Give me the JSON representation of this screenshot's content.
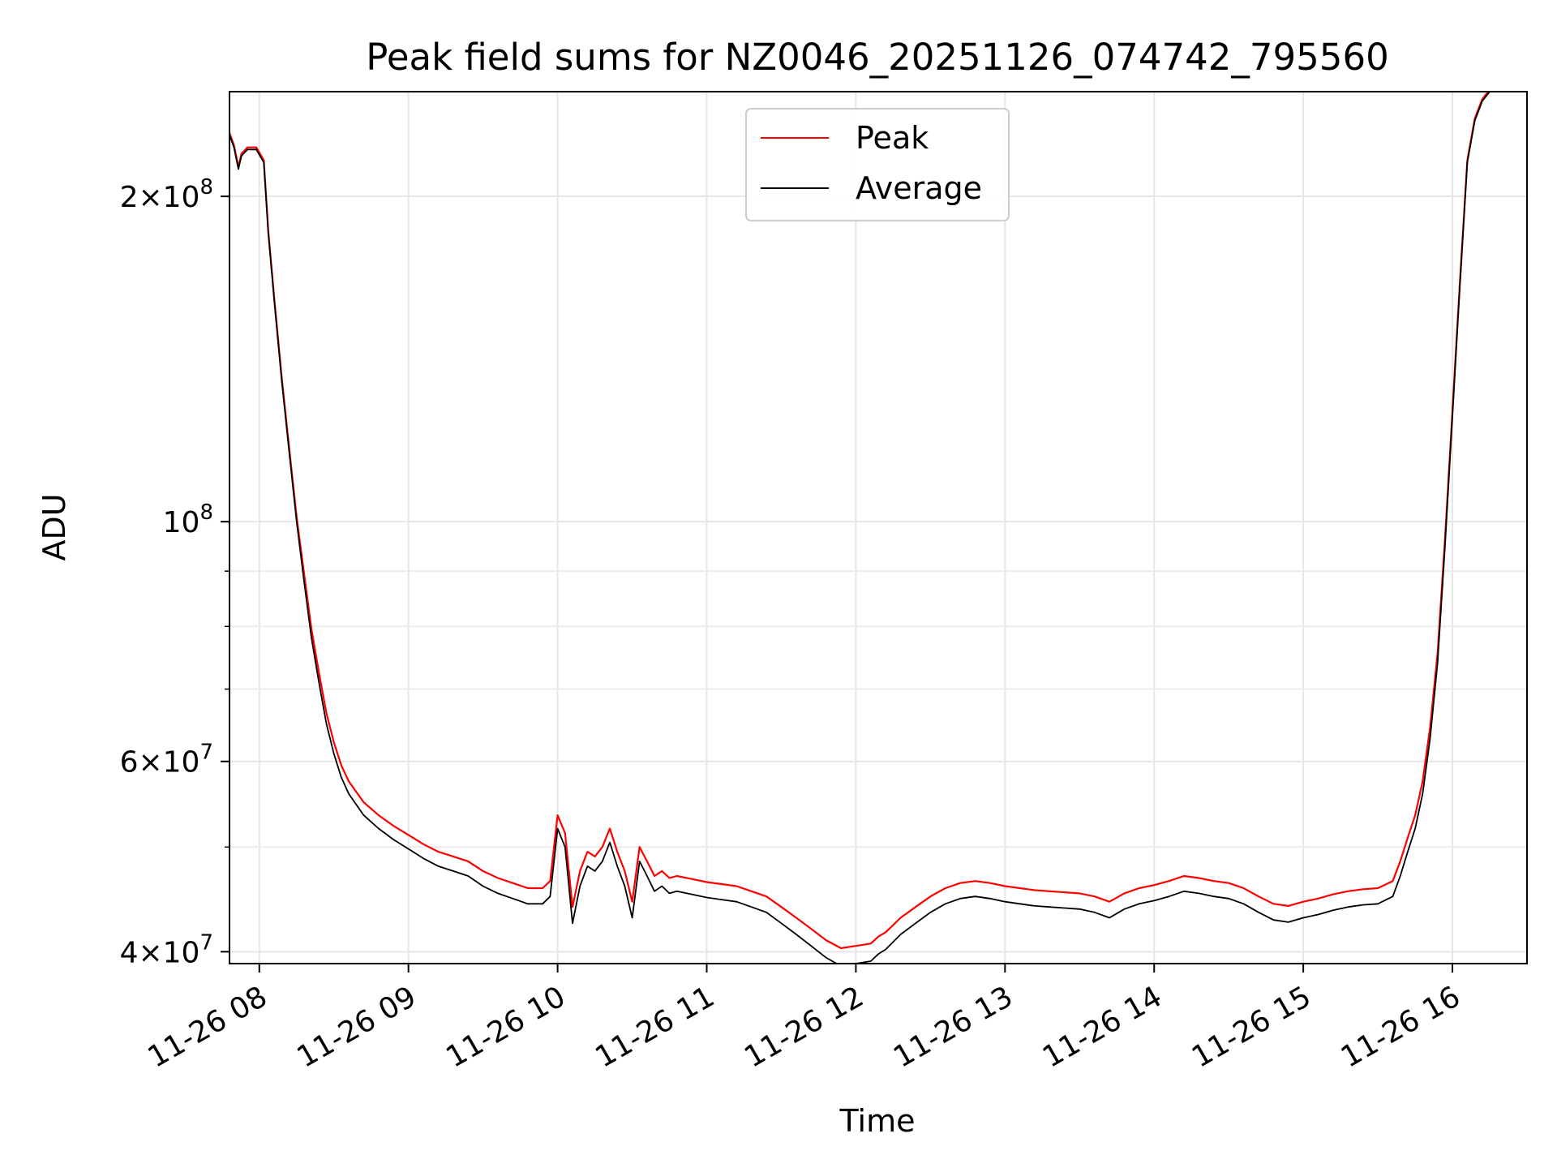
{
  "chart_data": {
    "type": "line",
    "title": "Peak field sums for NZ0046_20251126_074742_795560",
    "xlabel": "Time",
    "ylabel": "ADU",
    "yscale": "log",
    "ylim": [
      39000000,
      250000000
    ],
    "xlim_hours": [
      7.8,
      16.5
    ],
    "x_ticks": [
      {
        "value": 8,
        "label": "11-26 08"
      },
      {
        "value": 9,
        "label": "11-26 09"
      },
      {
        "value": 10,
        "label": "11-26 10"
      },
      {
        "value": 11,
        "label": "11-26 11"
      },
      {
        "value": 12,
        "label": "11-26 12"
      },
      {
        "value": 13,
        "label": "11-26 13"
      },
      {
        "value": 14,
        "label": "11-26 14"
      },
      {
        "value": 15,
        "label": "11-26 15"
      },
      {
        "value": 16,
        "label": "11-26 16"
      }
    ],
    "y_ticks": [
      {
        "value": 40000000,
        "mantissa": "4",
        "exp": "7"
      },
      {
        "value": 60000000,
        "mantissa": "6",
        "exp": "7"
      },
      {
        "value": 100000000,
        "mantissa": "",
        "exp": "8"
      },
      {
        "value": 200000000,
        "mantissa": "2",
        "exp": "8"
      }
    ],
    "y_minor_ticks": [
      50000000,
      70000000,
      80000000,
      90000000
    ],
    "grid": true,
    "legend": {
      "position": "upper center",
      "entries": [
        {
          "name": "Peak",
          "color": "#ff0000"
        },
        {
          "name": "Average",
          "color": "#000000"
        }
      ]
    },
    "series": [
      {
        "name": "Average",
        "color": "#000000",
        "x": [
          7.8,
          7.83,
          7.86,
          7.88,
          7.92,
          7.98,
          8.03,
          8.06,
          8.1,
          8.15,
          8.2,
          8.25,
          8.3,
          8.35,
          8.4,
          8.45,
          8.5,
          8.55,
          8.6,
          8.7,
          8.8,
          8.9,
          9.0,
          9.1,
          9.2,
          9.3,
          9.4,
          9.5,
          9.6,
          9.7,
          9.8,
          9.9,
          9.95,
          10.0,
          10.05,
          10.1,
          10.15,
          10.2,
          10.25,
          10.3,
          10.35,
          10.4,
          10.45,
          10.5,
          10.55,
          10.6,
          10.65,
          10.7,
          10.75,
          10.8,
          10.9,
          11.0,
          11.1,
          11.2,
          11.3,
          11.4,
          11.5,
          11.6,
          11.7,
          11.8,
          11.9,
          12.0,
          12.1,
          12.15,
          12.2,
          12.3,
          12.4,
          12.5,
          12.6,
          12.7,
          12.8,
          12.9,
          13.0,
          13.1,
          13.2,
          13.3,
          13.4,
          13.5,
          13.6,
          13.7,
          13.8,
          13.9,
          14.0,
          14.1,
          14.2,
          14.3,
          14.4,
          14.5,
          14.6,
          14.7,
          14.8,
          14.9,
          15.0,
          15.1,
          15.2,
          15.3,
          15.4,
          15.5,
          15.6,
          15.65,
          15.7,
          15.75,
          15.8,
          15.85,
          15.9,
          15.95,
          16.0,
          16.05,
          16.1,
          16.15,
          16.2,
          16.25,
          16.3
        ],
        "y": [
          228000000,
          222000000,
          212000000,
          218000000,
          221000000,
          221000000,
          215000000,
          185000000,
          160000000,
          135000000,
          116000000,
          100000000,
          88000000,
          78000000,
          71000000,
          65000000,
          61000000,
          58000000,
          56000000,
          53500000,
          52000000,
          50800000,
          49800000,
          48800000,
          48000000,
          47500000,
          47000000,
          46000000,
          45300000,
          44800000,
          44300000,
          44300000,
          45000000,
          52000000,
          50000000,
          42500000,
          46000000,
          48000000,
          47500000,
          48500000,
          50500000,
          48000000,
          46000000,
          43000000,
          48500000,
          47000000,
          45500000,
          46000000,
          45300000,
          45500000,
          45200000,
          44900000,
          44700000,
          44500000,
          44000000,
          43500000,
          42500000,
          41500000,
          40500000,
          39500000,
          38800000,
          39000000,
          39200000,
          39800000,
          40200000,
          41500000,
          42500000,
          43500000,
          44300000,
          44800000,
          45000000,
          44800000,
          44500000,
          44300000,
          44100000,
          44000000,
          43900000,
          43800000,
          43500000,
          43000000,
          43800000,
          44300000,
          44600000,
          45000000,
          45500000,
          45300000,
          45000000,
          44800000,
          44300000,
          43500000,
          42800000,
          42600000,
          43000000,
          43300000,
          43700000,
          44000000,
          44200000,
          44300000,
          45000000,
          47000000,
          49500000,
          52000000,
          56000000,
          63000000,
          74000000,
          95000000,
          125000000,
          165000000,
          215000000,
          235000000,
          245000000,
          250000000,
          252000000
        ]
      },
      {
        "name": "Peak",
        "color": "#ff0000",
        "x": [
          7.8,
          7.83,
          7.86,
          7.88,
          7.92,
          7.98,
          8.03,
          8.06,
          8.1,
          8.15,
          8.2,
          8.25,
          8.3,
          8.35,
          8.4,
          8.45,
          8.5,
          8.55,
          8.6,
          8.7,
          8.8,
          8.9,
          9.0,
          9.1,
          9.2,
          9.3,
          9.4,
          9.5,
          9.6,
          9.7,
          9.8,
          9.9,
          9.95,
          10.0,
          10.05,
          10.1,
          10.15,
          10.2,
          10.25,
          10.3,
          10.35,
          10.4,
          10.45,
          10.5,
          10.55,
          10.6,
          10.65,
          10.7,
          10.75,
          10.8,
          10.9,
          11.0,
          11.1,
          11.2,
          11.3,
          11.4,
          11.5,
          11.6,
          11.7,
          11.8,
          11.9,
          12.0,
          12.1,
          12.15,
          12.2,
          12.3,
          12.4,
          12.5,
          12.6,
          12.7,
          12.8,
          12.9,
          13.0,
          13.1,
          13.2,
          13.3,
          13.4,
          13.5,
          13.6,
          13.7,
          13.8,
          13.9,
          14.0,
          14.1,
          14.2,
          14.3,
          14.4,
          14.5,
          14.6,
          14.7,
          14.8,
          14.9,
          15.0,
          15.1,
          15.2,
          15.3,
          15.4,
          15.5,
          15.6,
          15.65,
          15.7,
          15.75,
          15.8,
          15.85,
          15.9,
          15.95,
          16.0,
          16.05,
          16.1,
          16.15,
          16.2,
          16.25,
          16.3
        ],
        "y": [
          229000000,
          223000000,
          213000000,
          219000000,
          222000000,
          222000000,
          216000000,
          186000000,
          161000000,
          136000000,
          117000000,
          101000000,
          89500000,
          79500000,
          72500000,
          66500000,
          62500000,
          59500000,
          57500000,
          55000000,
          53500000,
          52300000,
          51300000,
          50300000,
          49500000,
          49000000,
          48500000,
          47500000,
          46800000,
          46300000,
          45800000,
          45800000,
          46500000,
          53500000,
          51500000,
          44000000,
          47500000,
          49500000,
          49000000,
          50000000,
          52000000,
          49500000,
          47500000,
          44500000,
          50000000,
          48500000,
          47000000,
          47500000,
          46800000,
          47000000,
          46700000,
          46400000,
          46200000,
          46000000,
          45500000,
          45000000,
          44000000,
          43000000,
          42000000,
          41000000,
          40300000,
          40500000,
          40700000,
          41300000,
          41700000,
          43000000,
          44000000,
          45000000,
          45800000,
          46300000,
          46500000,
          46300000,
          46000000,
          45800000,
          45600000,
          45500000,
          45400000,
          45300000,
          45000000,
          44500000,
          45300000,
          45800000,
          46100000,
          46500000,
          47000000,
          46800000,
          46500000,
          46300000,
          45800000,
          45000000,
          44300000,
          44100000,
          44500000,
          44800000,
          45200000,
          45500000,
          45700000,
          45800000,
          46500000,
          48500000,
          51000000,
          53500000,
          57500000,
          64500000,
          75500000,
          96500000,
          126500000,
          166500000,
          216000000,
          236000000,
          246000000,
          251000000,
          253000000
        ]
      }
    ]
  }
}
